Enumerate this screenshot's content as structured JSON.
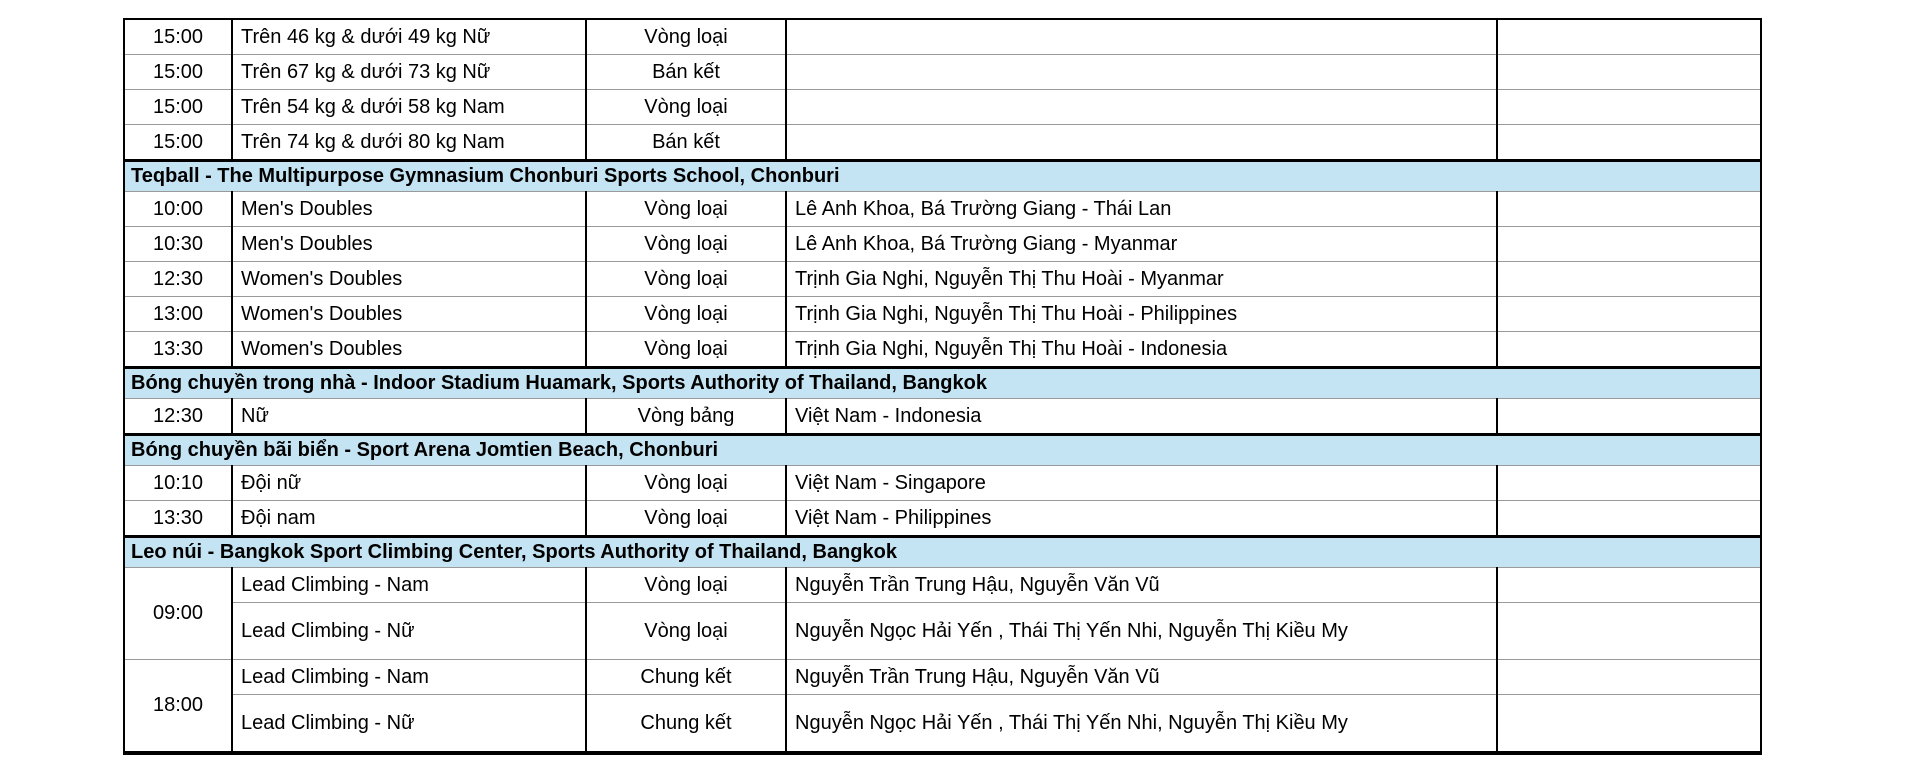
{
  "colors": {
    "section_header_bg": "#C5E4F3",
    "grid_line": "#9A9A9A",
    "border": "#000000"
  },
  "table": {
    "sections": [
      {
        "header": null,
        "rows": [
          {
            "time": "15:00",
            "event": "Trên 46 kg & dưới 49 kg Nữ",
            "round": "Vòng loại",
            "detail": ""
          },
          {
            "time": "15:00",
            "event": "Trên 67 kg & dưới 73 kg Nữ",
            "round": "Bán kết",
            "detail": ""
          },
          {
            "time": "15:00",
            "event": "Trên 54 kg & dưới 58 kg Nam",
            "round": "Vòng loại",
            "detail": ""
          },
          {
            "time": "15:00",
            "event": "Trên 74 kg & dưới 80 kg Nam",
            "round": "Bán kết",
            "detail": ""
          }
        ]
      },
      {
        "header": "Teqball - The Multipurpose Gymnasium Chonburi Sports School, Chonburi",
        "rows": [
          {
            "time": "10:00",
            "event": "Men's Doubles",
            "round": "Vòng loại",
            "detail": "Lê Anh Khoa, Bá Trường Giang - Thái Lan"
          },
          {
            "time": "10:30",
            "event": "Men's Doubles",
            "round": "Vòng loại",
            "detail": "Lê Anh Khoa, Bá Trường Giang - Myanmar"
          },
          {
            "time": "12:30",
            "event": "Women's Doubles",
            "round": "Vòng loại",
            "detail": "Trịnh Gia Nghi, Nguyễn Thị Thu Hoài - Myanmar"
          },
          {
            "time": "13:00",
            "event": "Women's Doubles",
            "round": "Vòng loại",
            "detail": "Trịnh Gia Nghi, Nguyễn Thị Thu Hoài - Philippines"
          },
          {
            "time": "13:30",
            "event": "Women's Doubles",
            "round": "Vòng loại",
            "detail": "Trịnh Gia Nghi, Nguyễn Thị Thu Hoài - Indonesia"
          }
        ]
      },
      {
        "header": "Bóng chuyền trong nhà - Indoor Stadium Huamark, Sports Authority of Thailand, Bangkok",
        "rows": [
          {
            "time": "12:30",
            "event": "Nữ",
            "round": "Vòng bảng",
            "detail": "Việt Nam - Indonesia"
          }
        ]
      },
      {
        "header": "Bóng chuyền bãi biển - Sport Arena Jomtien Beach, Chonburi",
        "rows": [
          {
            "time": "10:10",
            "event": "Đội nữ",
            "round": "Vòng loại",
            "detail": "Việt Nam - Singapore"
          },
          {
            "time": "13:30",
            "event": "Đội nam",
            "round": "Vòng loại",
            "detail": "Việt Nam - Philippines"
          }
        ]
      },
      {
        "header": "Leo núi - Bangkok Sport Climbing Center, Sports Authority of Thailand, Bangkok",
        "groups": [
          {
            "time": "09:00",
            "rows": [
              {
                "event": "Lead Climbing - Nam",
                "round": "Vòng loại",
                "detail": "Nguyễn Trần Trung Hậu, Nguyễn Văn Vũ"
              },
              {
                "event": "Lead Climbing - Nữ",
                "round": "Vòng loại",
                "detail": "Nguyễn Ngọc Hải Yến , Thái Thị Yến Nhi, Nguyễn Thị Kiều My"
              }
            ]
          },
          {
            "time": "18:00",
            "rows": [
              {
                "event": "Lead Climbing - Nam",
                "round": "Chung kết",
                "detail": "Nguyễn Trần Trung Hậu, Nguyễn Văn Vũ"
              },
              {
                "event": "Lead Climbing - Nữ",
                "round": "Chung kết",
                "detail": "Nguyễn Ngọc Hải Yến , Thái Thị Yến Nhi, Nguyễn Thị Kiều My"
              }
            ]
          }
        ]
      }
    ]
  }
}
